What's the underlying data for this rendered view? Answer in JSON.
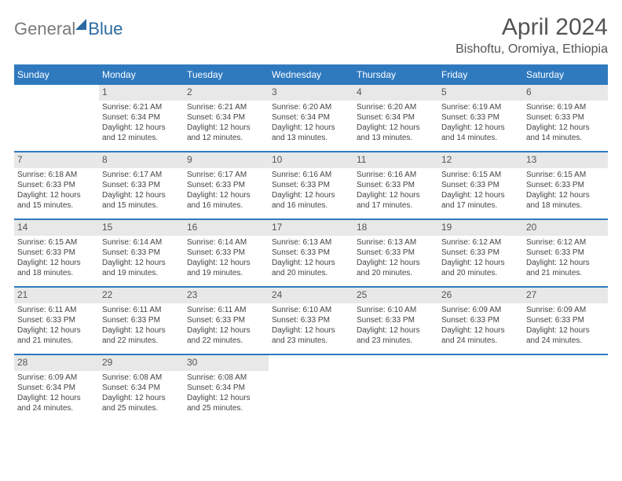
{
  "logo": {
    "part1": "General",
    "part2": "Blue"
  },
  "title": "April 2024",
  "location": "Bishoftu, Oromiya, Ethiopia",
  "weekdays": [
    "Sunday",
    "Monday",
    "Tuesday",
    "Wednesday",
    "Thursday",
    "Friday",
    "Saturday"
  ],
  "colors": {
    "header_bg": "#2f7abf",
    "header_text": "#ffffff",
    "daynum_bg": "#e8e8e8",
    "border": "#2f7abf",
    "text": "#444444",
    "title_text": "#545454"
  },
  "fonts": {
    "title_size": 30,
    "location_size": 16,
    "weekday_size": 12,
    "daynum_size": 12,
    "body_size": 10
  },
  "weeks": [
    [
      null,
      {
        "n": "1",
        "sunrise": "Sunrise: 6:21 AM",
        "sunset": "Sunset: 6:34 PM",
        "day1": "Daylight: 12 hours",
        "day2": "and 12 minutes."
      },
      {
        "n": "2",
        "sunrise": "Sunrise: 6:21 AM",
        "sunset": "Sunset: 6:34 PM",
        "day1": "Daylight: 12 hours",
        "day2": "and 12 minutes."
      },
      {
        "n": "3",
        "sunrise": "Sunrise: 6:20 AM",
        "sunset": "Sunset: 6:34 PM",
        "day1": "Daylight: 12 hours",
        "day2": "and 13 minutes."
      },
      {
        "n": "4",
        "sunrise": "Sunrise: 6:20 AM",
        "sunset": "Sunset: 6:34 PM",
        "day1": "Daylight: 12 hours",
        "day2": "and 13 minutes."
      },
      {
        "n": "5",
        "sunrise": "Sunrise: 6:19 AM",
        "sunset": "Sunset: 6:33 PM",
        "day1": "Daylight: 12 hours",
        "day2": "and 14 minutes."
      },
      {
        "n": "6",
        "sunrise": "Sunrise: 6:19 AM",
        "sunset": "Sunset: 6:33 PM",
        "day1": "Daylight: 12 hours",
        "day2": "and 14 minutes."
      }
    ],
    [
      {
        "n": "7",
        "sunrise": "Sunrise: 6:18 AM",
        "sunset": "Sunset: 6:33 PM",
        "day1": "Daylight: 12 hours",
        "day2": "and 15 minutes."
      },
      {
        "n": "8",
        "sunrise": "Sunrise: 6:17 AM",
        "sunset": "Sunset: 6:33 PM",
        "day1": "Daylight: 12 hours",
        "day2": "and 15 minutes."
      },
      {
        "n": "9",
        "sunrise": "Sunrise: 6:17 AM",
        "sunset": "Sunset: 6:33 PM",
        "day1": "Daylight: 12 hours",
        "day2": "and 16 minutes."
      },
      {
        "n": "10",
        "sunrise": "Sunrise: 6:16 AM",
        "sunset": "Sunset: 6:33 PM",
        "day1": "Daylight: 12 hours",
        "day2": "and 16 minutes."
      },
      {
        "n": "11",
        "sunrise": "Sunrise: 6:16 AM",
        "sunset": "Sunset: 6:33 PM",
        "day1": "Daylight: 12 hours",
        "day2": "and 17 minutes."
      },
      {
        "n": "12",
        "sunrise": "Sunrise: 6:15 AM",
        "sunset": "Sunset: 6:33 PM",
        "day1": "Daylight: 12 hours",
        "day2": "and 17 minutes."
      },
      {
        "n": "13",
        "sunrise": "Sunrise: 6:15 AM",
        "sunset": "Sunset: 6:33 PM",
        "day1": "Daylight: 12 hours",
        "day2": "and 18 minutes."
      }
    ],
    [
      {
        "n": "14",
        "sunrise": "Sunrise: 6:15 AM",
        "sunset": "Sunset: 6:33 PM",
        "day1": "Daylight: 12 hours",
        "day2": "and 18 minutes."
      },
      {
        "n": "15",
        "sunrise": "Sunrise: 6:14 AM",
        "sunset": "Sunset: 6:33 PM",
        "day1": "Daylight: 12 hours",
        "day2": "and 19 minutes."
      },
      {
        "n": "16",
        "sunrise": "Sunrise: 6:14 AM",
        "sunset": "Sunset: 6:33 PM",
        "day1": "Daylight: 12 hours",
        "day2": "and 19 minutes."
      },
      {
        "n": "17",
        "sunrise": "Sunrise: 6:13 AM",
        "sunset": "Sunset: 6:33 PM",
        "day1": "Daylight: 12 hours",
        "day2": "and 20 minutes."
      },
      {
        "n": "18",
        "sunrise": "Sunrise: 6:13 AM",
        "sunset": "Sunset: 6:33 PM",
        "day1": "Daylight: 12 hours",
        "day2": "and 20 minutes."
      },
      {
        "n": "19",
        "sunrise": "Sunrise: 6:12 AM",
        "sunset": "Sunset: 6:33 PM",
        "day1": "Daylight: 12 hours",
        "day2": "and 20 minutes."
      },
      {
        "n": "20",
        "sunrise": "Sunrise: 6:12 AM",
        "sunset": "Sunset: 6:33 PM",
        "day1": "Daylight: 12 hours",
        "day2": "and 21 minutes."
      }
    ],
    [
      {
        "n": "21",
        "sunrise": "Sunrise: 6:11 AM",
        "sunset": "Sunset: 6:33 PM",
        "day1": "Daylight: 12 hours",
        "day2": "and 21 minutes."
      },
      {
        "n": "22",
        "sunrise": "Sunrise: 6:11 AM",
        "sunset": "Sunset: 6:33 PM",
        "day1": "Daylight: 12 hours",
        "day2": "and 22 minutes."
      },
      {
        "n": "23",
        "sunrise": "Sunrise: 6:11 AM",
        "sunset": "Sunset: 6:33 PM",
        "day1": "Daylight: 12 hours",
        "day2": "and 22 minutes."
      },
      {
        "n": "24",
        "sunrise": "Sunrise: 6:10 AM",
        "sunset": "Sunset: 6:33 PM",
        "day1": "Daylight: 12 hours",
        "day2": "and 23 minutes."
      },
      {
        "n": "25",
        "sunrise": "Sunrise: 6:10 AM",
        "sunset": "Sunset: 6:33 PM",
        "day1": "Daylight: 12 hours",
        "day2": "and 23 minutes."
      },
      {
        "n": "26",
        "sunrise": "Sunrise: 6:09 AM",
        "sunset": "Sunset: 6:33 PM",
        "day1": "Daylight: 12 hours",
        "day2": "and 24 minutes."
      },
      {
        "n": "27",
        "sunrise": "Sunrise: 6:09 AM",
        "sunset": "Sunset: 6:33 PM",
        "day1": "Daylight: 12 hours",
        "day2": "and 24 minutes."
      }
    ],
    [
      {
        "n": "28",
        "sunrise": "Sunrise: 6:09 AM",
        "sunset": "Sunset: 6:34 PM",
        "day1": "Daylight: 12 hours",
        "day2": "and 24 minutes."
      },
      {
        "n": "29",
        "sunrise": "Sunrise: 6:08 AM",
        "sunset": "Sunset: 6:34 PM",
        "day1": "Daylight: 12 hours",
        "day2": "and 25 minutes."
      },
      {
        "n": "30",
        "sunrise": "Sunrise: 6:08 AM",
        "sunset": "Sunset: 6:34 PM",
        "day1": "Daylight: 12 hours",
        "day2": "and 25 minutes."
      },
      null,
      null,
      null,
      null
    ]
  ]
}
